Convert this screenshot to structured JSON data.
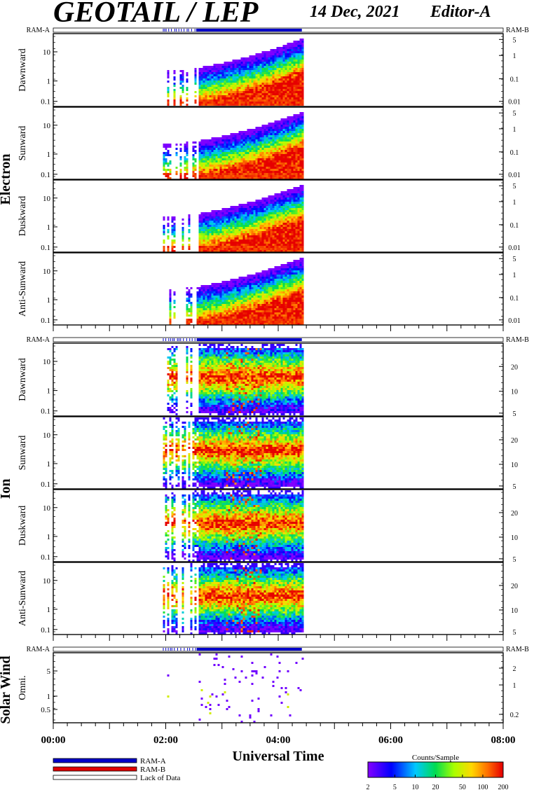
{
  "header": {
    "title": "GEOTAIL / LEP",
    "date": "14 Dec, 2021",
    "editor": "Editor-A"
  },
  "chart_data": {
    "type": "heatmap",
    "x_axis": {
      "label": "Universal Time",
      "ticks": [
        "00:00",
        "02:00",
        "04:00",
        "06:00",
        "08:00"
      ],
      "range_hours": [
        0,
        8
      ]
    },
    "data_coverage_hours": {
      "start": 1.95,
      "end": 4.42,
      "ram_a_dense_start": 2.55
    },
    "ram_labels": {
      "a": "RAM-A",
      "b": "RAM-B"
    },
    "groups": [
      {
        "name": "Electron",
        "panels": [
          {
            "label": "Dawnward",
            "left_ticks": [
              "10",
              "1",
              "0.1"
            ],
            "right_ticks": [
              "5",
              "1",
              "0.1",
              "0.01"
            ]
          },
          {
            "label": "Sunward",
            "left_ticks": [
              "10",
              "1",
              "0.1"
            ],
            "right_ticks": [
              "5",
              "1",
              "0.1",
              "0.01"
            ]
          },
          {
            "label": "Duskward",
            "left_ticks": [
              "10",
              "1",
              "0.1"
            ],
            "right_ticks": [
              "5",
              "1",
              "0.1",
              "0.01"
            ]
          },
          {
            "label": "Anti-Sunward",
            "left_ticks": [
              "10",
              "1",
              "0.1"
            ],
            "right_ticks": [
              "5",
              "1",
              "0.1",
              "0.01"
            ]
          }
        ]
      },
      {
        "name": "Ion",
        "panels": [
          {
            "label": "Dawnward",
            "left_ticks": [
              "10",
              "1",
              "0.1"
            ],
            "right_ticks": [
              "20",
              "10",
              "5"
            ]
          },
          {
            "label": "Sunward",
            "left_ticks": [
              "10",
              "1",
              "0.1"
            ],
            "right_ticks": [
              "20",
              "10",
              "5"
            ]
          },
          {
            "label": "Duskward",
            "left_ticks": [
              "10",
              "1",
              "0.1"
            ],
            "right_ticks": [
              "20",
              "10",
              "5"
            ]
          },
          {
            "label": "Anti-Sunward",
            "left_ticks": [
              "10",
              "1",
              "0.1"
            ],
            "right_ticks": [
              "20",
              "10",
              "5"
            ]
          }
        ]
      },
      {
        "name": "Solar Wind",
        "panels": [
          {
            "label": "Omni.",
            "left_ticks": [
              "5",
              "1",
              "0.5"
            ],
            "right_ticks": [
              "2",
              "1",
              "0.2"
            ]
          }
        ]
      }
    ],
    "legend": {
      "items": [
        "RAM-A",
        "RAM-B",
        "Lack of Data"
      ],
      "colors": [
        "#0000c8",
        "#e00000",
        "#ffffff"
      ]
    },
    "colorbar": {
      "title": "Counts/Sample",
      "ticks": [
        "2",
        "5",
        "10",
        "20",
        "50",
        "100",
        "200"
      ],
      "scale": "log",
      "range": [
        2,
        200
      ]
    }
  }
}
